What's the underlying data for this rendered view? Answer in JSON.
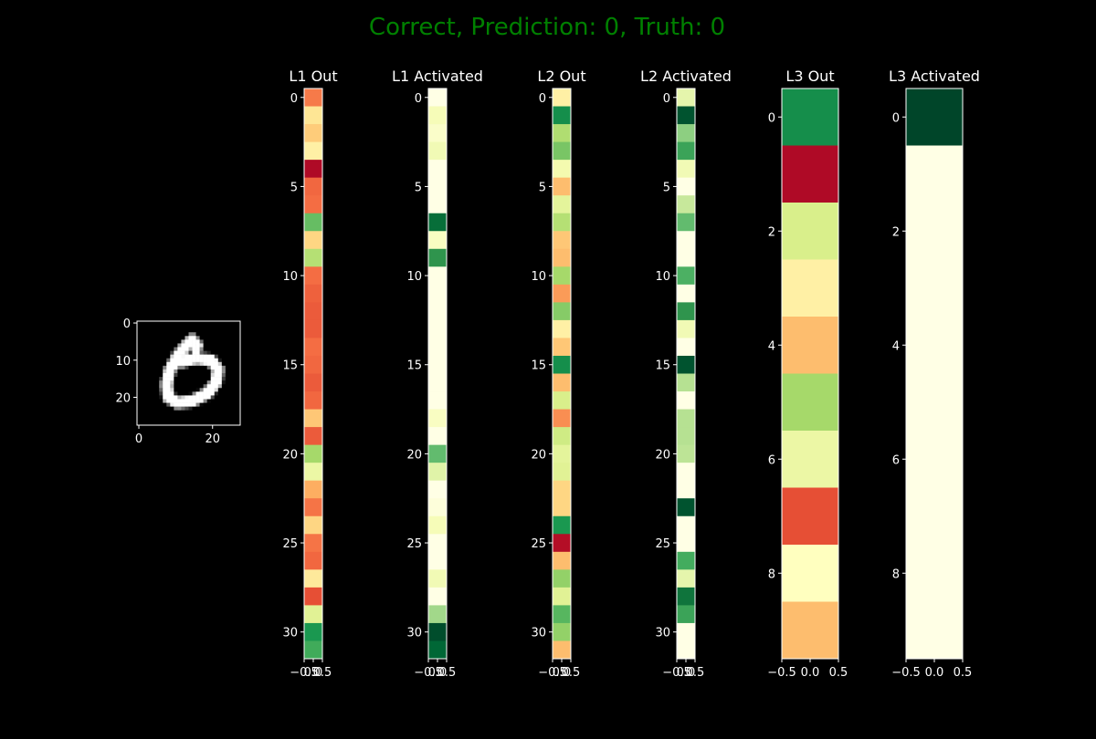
{
  "figure": {
    "title": "Correct, Prediction: 0, Truth: 0",
    "title_color": "#008000",
    "background": "#000000",
    "foreground": "#ffffff"
  },
  "chart_data": [
    {
      "type": "heatmap",
      "id": "input",
      "title": "",
      "colormap": "gray",
      "rows": 28,
      "cols": 28,
      "xticks": [
        0,
        20
      ],
      "yticks": [
        0,
        10,
        20
      ],
      "stroke_segments": [
        [
          15.0,
          5.0,
          13.0,
          7.0,
          2.3
        ],
        [
          13.0,
          7.0,
          11.0,
          9.5,
          2.3
        ],
        [
          11.0,
          9.5,
          9.0,
          13.0,
          2.3
        ],
        [
          9.0,
          13.0,
          8.0,
          17.0,
          2.3
        ],
        [
          8.0,
          17.0,
          8.5,
          20.5,
          2.3
        ],
        [
          8.5,
          20.5,
          11.0,
          22.0,
          2.3
        ],
        [
          11.0,
          22.0,
          15.0,
          21.5,
          2.3
        ],
        [
          15.0,
          21.5,
          19.0,
          19.5,
          2.3
        ],
        [
          19.0,
          19.5,
          21.5,
          16.5,
          2.3
        ],
        [
          21.5,
          16.5,
          22.0,
          13.0,
          2.3
        ],
        [
          22.0,
          13.0,
          20.0,
          10.5,
          2.3
        ],
        [
          20.0,
          10.5,
          16.0,
          10.0,
          2.3
        ],
        [
          16.0,
          10.0,
          12.0,
          11.0,
          2.3
        ],
        [
          15.0,
          5.0,
          16.5,
          6.5,
          1.8
        ],
        [
          16.5,
          6.5,
          16.0,
          8.5,
          1.6
        ]
      ]
    },
    {
      "type": "heatmap",
      "id": "l1_out",
      "title": "L1 Out",
      "colormap": "RdYlGn",
      "rows": 32,
      "cols": 1,
      "xticks": [
        -0.5,
        0.0,
        0.5
      ],
      "yticks": [
        0,
        5,
        10,
        15,
        20,
        25,
        30
      ],
      "values": [
        0.22,
        0.42,
        0.36,
        0.45,
        0.02,
        0.19,
        0.2,
        0.8,
        0.38,
        0.67,
        0.2,
        0.18,
        0.17,
        0.17,
        0.2,
        0.19,
        0.17,
        0.19,
        0.35,
        0.17,
        0.7,
        0.55,
        0.3,
        0.21,
        0.38,
        0.21,
        0.19,
        0.43,
        0.15,
        0.58,
        0.9,
        0.85
      ]
    },
    {
      "type": "heatmap",
      "id": "l1_activated",
      "title": "L1 Activated",
      "colormap": "YlGn",
      "rows": 32,
      "cols": 1,
      "xticks": [
        -0.5,
        0.0,
        0.5
      ],
      "yticks": [
        0,
        5,
        10,
        15,
        20,
        25,
        30
      ],
      "values": [
        0.0,
        0.13,
        0.08,
        0.15,
        0.0,
        0.0,
        0.0,
        0.85,
        0.1,
        0.7,
        0.0,
        0.0,
        0.0,
        0.0,
        0.0,
        0.0,
        0.0,
        0.0,
        0.1,
        0.0,
        0.55,
        0.22,
        0.0,
        0.03,
        0.13,
        0.0,
        0.0,
        0.15,
        0.0,
        0.4,
        0.97,
        0.88
      ]
    },
    {
      "type": "heatmap",
      "id": "l2_out",
      "title": "L2 Out",
      "colormap": "RdYlGn",
      "rows": 32,
      "cols": 1,
      "xticks": [
        -0.5,
        0.0,
        0.5
      ],
      "yticks": [
        0,
        5,
        10,
        15,
        20,
        25,
        30
      ],
      "values": [
        0.45,
        0.92,
        0.68,
        0.77,
        0.53,
        0.33,
        0.57,
        0.67,
        0.35,
        0.33,
        0.7,
        0.27,
        0.75,
        0.45,
        0.35,
        0.92,
        0.33,
        0.6,
        0.25,
        0.62,
        0.57,
        0.58,
        0.38,
        0.38,
        0.9,
        0.03,
        0.33,
        0.73,
        0.58,
        0.82,
        0.73,
        0.33
      ]
    },
    {
      "type": "heatmap",
      "id": "l2_activated",
      "title": "L2 Activated",
      "colormap": "YlGn",
      "rows": 32,
      "cols": 1,
      "xticks": [
        -0.5,
        0.0,
        0.5
      ],
      "yticks": [
        0,
        5,
        10,
        15,
        20,
        25,
        30
      ],
      "values": [
        0.2,
        0.95,
        0.45,
        0.65,
        0.15,
        0.0,
        0.3,
        0.55,
        0.0,
        0.0,
        0.6,
        0.0,
        0.7,
        0.15,
        0.0,
        0.95,
        0.35,
        0.0,
        0.35,
        0.35,
        0.33,
        0.0,
        0.0,
        0.95,
        0.0,
        0.0,
        0.62,
        0.2,
        0.82,
        0.65,
        0.0,
        0.0
      ]
    },
    {
      "type": "heatmap",
      "id": "l3_out",
      "title": "L3 Out",
      "colormap": "RdYlGn",
      "rows": 10,
      "cols": 1,
      "xticks": [
        -0.5,
        0.0,
        0.5
      ],
      "yticks": [
        0,
        2,
        4,
        6,
        8
      ],
      "values": [
        0.92,
        0.02,
        0.6,
        0.45,
        0.33,
        0.7,
        0.55,
        0.15,
        0.5,
        0.33
      ]
    },
    {
      "type": "heatmap",
      "id": "l3_activated",
      "title": "L3 Activated",
      "colormap": "YlGn",
      "rows": 10,
      "cols": 1,
      "xticks": [
        -0.5,
        0.0,
        0.5
      ],
      "yticks": [
        0,
        2,
        4,
        6,
        8
      ],
      "values": [
        1.0,
        0.0,
        0.0,
        0.0,
        0.0,
        0.0,
        0.0,
        0.0,
        0.0,
        0.0
      ]
    }
  ]
}
